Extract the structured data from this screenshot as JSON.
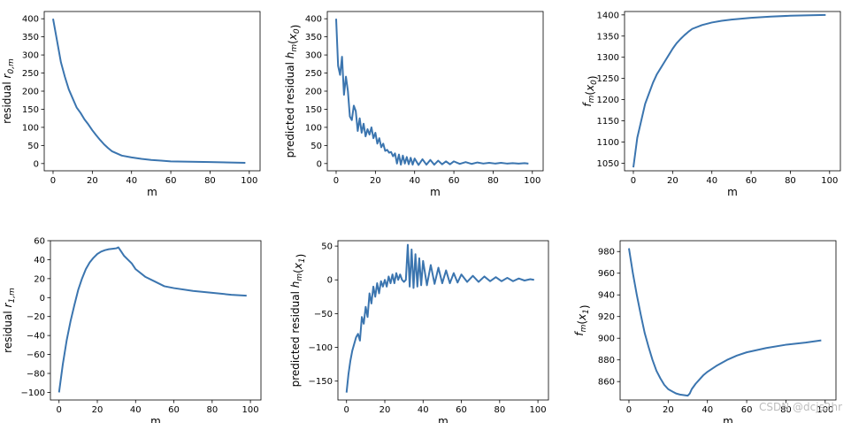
{
  "watermark": "CSDN @dcjs2hr",
  "chart_data": [
    {
      "type": "line",
      "xlabel": "m",
      "ylabel": "residual r_{0,m}",
      "xlim": [
        -4.5,
        105.5
      ],
      "ylim": [
        -20,
        420
      ],
      "xticks": [
        0,
        20,
        40,
        60,
        80,
        100
      ],
      "yticks": [
        0,
        50,
        100,
        150,
        200,
        250,
        300,
        350,
        400
      ],
      "series": [
        {
          "color": "#3b75af",
          "x": [
            0,
            2,
            4,
            6,
            8,
            10,
            12,
            14,
            16,
            18,
            20,
            22,
            24,
            26,
            28,
            30,
            35,
            40,
            45,
            50,
            55,
            60,
            70,
            80,
            90,
            98
          ],
          "y": [
            400,
            340,
            280,
            240,
            205,
            180,
            155,
            140,
            122,
            108,
            92,
            78,
            65,
            53,
            43,
            34,
            22,
            17,
            13,
            10,
            8,
            6,
            5,
            4,
            3,
            2
          ]
        }
      ]
    },
    {
      "type": "line",
      "xlabel": "m",
      "ylabel": "predicted residual h_m(x_0)",
      "xlim": [
        -4.5,
        105.5
      ],
      "ylim": [
        -20,
        420
      ],
      "xticks": [
        0,
        20,
        40,
        60,
        80,
        100
      ],
      "yticks": [
        0,
        50,
        100,
        150,
        200,
        250,
        300,
        350,
        400
      ],
      "series": [
        {
          "color": "#3b75af",
          "x": [
            0,
            1,
            2,
            3,
            4,
            5,
            6,
            7,
            8,
            9,
            10,
            11,
            12,
            13,
            14,
            15,
            16,
            17,
            18,
            19,
            20,
            21,
            22,
            23,
            24,
            25,
            26,
            27,
            28,
            29,
            30,
            31,
            32,
            33,
            34,
            35,
            36,
            37,
            38,
            39,
            40,
            42,
            44,
            46,
            48,
            50,
            52,
            54,
            56,
            58,
            60,
            63,
            66,
            69,
            72,
            75,
            78,
            81,
            84,
            87,
            90,
            93,
            96,
            98
          ],
          "y": [
            400,
            270,
            245,
            295,
            190,
            240,
            200,
            130,
            120,
            160,
            145,
            90,
            125,
            85,
            110,
            75,
            95,
            80,
            100,
            70,
            85,
            55,
            70,
            45,
            55,
            35,
            38,
            30,
            32,
            20,
            28,
            0,
            25,
            -3,
            22,
            0,
            18,
            -2,
            16,
            -3,
            14,
            -4,
            12,
            -3,
            10,
            -3,
            8,
            -2,
            6,
            -2,
            6,
            -1,
            4,
            -1,
            3,
            0,
            2,
            0,
            2,
            0,
            1,
            0,
            1,
            0
          ]
        }
      ]
    },
    {
      "type": "line",
      "xlabel": "m",
      "ylabel": "f_m(x_0)",
      "xlim": [
        -4.5,
        105.5
      ],
      "ylim": [
        1032,
        1408
      ],
      "xticks": [
        0,
        20,
        40,
        60,
        80,
        100
      ],
      "yticks": [
        1050,
        1100,
        1150,
        1200,
        1250,
        1300,
        1350,
        1400
      ],
      "series": [
        {
          "color": "#3b75af",
          "x": [
            0,
            2,
            4,
            6,
            8,
            10,
            12,
            14,
            16,
            18,
            20,
            22,
            24,
            26,
            28,
            30,
            35,
            40,
            45,
            50,
            60,
            70,
            80,
            90,
            98
          ],
          "y": [
            1040,
            1110,
            1150,
            1190,
            1215,
            1240,
            1260,
            1275,
            1290,
            1305,
            1320,
            1333,
            1343,
            1352,
            1360,
            1367,
            1376,
            1382,
            1386,
            1389,
            1393,
            1396,
            1398,
            1399,
            1400
          ]
        }
      ]
    },
    {
      "type": "line",
      "xlabel": "m",
      "ylabel": "residual r_{1,m}",
      "xlim": [
        -4.5,
        105.5
      ],
      "ylim": [
        -108,
        60
      ],
      "xticks": [
        0,
        20,
        40,
        60,
        80,
        100
      ],
      "yticks": [
        -100,
        -80,
        -60,
        -40,
        -20,
        0,
        20,
        40,
        60
      ],
      "series": [
        {
          "color": "#3b75af",
          "x": [
            0,
            2,
            4,
            6,
            8,
            10,
            12,
            14,
            16,
            18,
            20,
            22,
            24,
            26,
            28,
            30,
            31,
            32,
            34,
            36,
            38,
            40,
            45,
            50,
            55,
            60,
            70,
            80,
            90,
            98
          ],
          "y": [
            -100,
            -70,
            -45,
            -25,
            -8,
            8,
            20,
            30,
            37,
            42,
            46,
            48.5,
            50,
            51,
            51.5,
            52,
            53,
            50,
            44,
            40,
            36,
            30,
            22,
            17,
            12,
            10,
            7,
            5,
            3,
            2
          ]
        }
      ]
    },
    {
      "type": "line",
      "xlabel": "m",
      "ylabel": "predicted residual h_m(x_1)",
      "xlim": [
        -4.5,
        105.5
      ],
      "ylim": [
        -178,
        58
      ],
      "xticks": [
        0,
        20,
        40,
        60,
        80,
        100
      ],
      "yticks": [
        -150,
        -100,
        -50,
        0,
        50
      ],
      "series": [
        {
          "color": "#3b75af",
          "x": [
            0,
            1,
            2,
            3,
            4,
            5,
            6,
            7,
            8,
            9,
            10,
            11,
            12,
            13,
            14,
            15,
            16,
            17,
            18,
            19,
            20,
            21,
            22,
            23,
            24,
            25,
            26,
            27,
            28,
            29,
            30,
            31,
            32,
            33,
            34,
            35,
            36,
            37,
            38,
            39,
            40,
            42,
            44,
            46,
            48,
            50,
            52,
            54,
            56,
            58,
            60,
            63,
            66,
            69,
            72,
            75,
            78,
            81,
            84,
            87,
            90,
            93,
            96,
            98
          ],
          "y": [
            -167,
            -140,
            -120,
            -105,
            -95,
            -85,
            -80,
            -90,
            -55,
            -65,
            -40,
            -55,
            -20,
            -35,
            -10,
            -25,
            -5,
            -20,
            -2,
            -10,
            0,
            -10,
            5,
            -5,
            8,
            -5,
            10,
            0,
            8,
            0,
            -3,
            0,
            52,
            -10,
            45,
            -12,
            38,
            -10,
            32,
            -8,
            28,
            -8,
            22,
            -6,
            18,
            -5,
            14,
            -5,
            10,
            -4,
            8,
            -3,
            6,
            -3,
            5,
            -2,
            4,
            -2,
            3,
            -2,
            2,
            -1,
            1,
            0
          ]
        }
      ]
    },
    {
      "type": "line",
      "xlabel": "m",
      "ylabel": "f_m(x_1)",
      "xlim": [
        -4.5,
        105.5
      ],
      "ylim": [
        843,
        990
      ],
      "xticks": [
        0,
        20,
        40,
        60,
        80,
        100
      ],
      "yticks": [
        860,
        880,
        900,
        920,
        940,
        960,
        980
      ],
      "series": [
        {
          "color": "#3b75af",
          "x": [
            0,
            2,
            4,
            6,
            8,
            10,
            12,
            14,
            16,
            18,
            20,
            22,
            24,
            26,
            28,
            30,
            31,
            32,
            34,
            36,
            38,
            40,
            45,
            50,
            55,
            60,
            70,
            80,
            90,
            98
          ],
          "y": [
            983,
            960,
            940,
            922,
            905,
            892,
            880,
            870,
            863,
            857,
            853,
            851,
            849,
            848,
            847.5,
            847,
            849,
            853,
            858,
            862,
            866,
            869,
            875,
            880,
            884,
            887,
            891,
            894,
            896,
            898
          ]
        }
      ]
    }
  ]
}
